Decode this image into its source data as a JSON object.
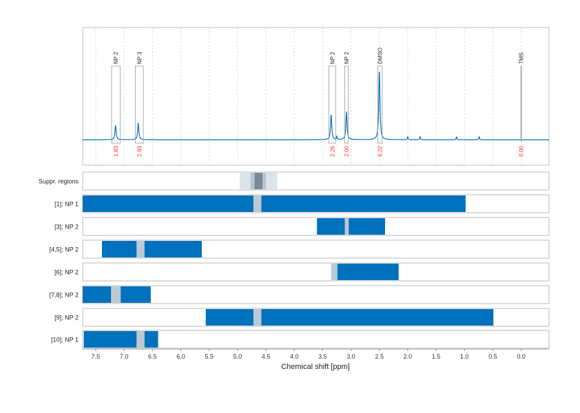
{
  "chart_data": {
    "type": "nmr-spectrum-with-range-tracks",
    "xlabel": "Chemical shift [ppm]",
    "xlim": [
      7.73,
      -0.49
    ],
    "x_reversed": true,
    "grid": "vertical dashed every 0.5 ppm",
    "x_ticks": [
      "7.5",
      "7.0",
      "6.5",
      "6.0",
      "5.5",
      "5.0",
      "4.5",
      "4.0",
      "3.5",
      "3.0",
      "2.5",
      "2.0",
      "1.5",
      "1.0",
      "0.5",
      "0.0"
    ],
    "spectrum": {
      "color": "#0071BC",
      "peaks": [
        {
          "label": "NP 2",
          "ppm": 7.15,
          "range": [
            7.22,
            7.07
          ],
          "rel_height": 0.2,
          "integral": "1.83"
        },
        {
          "label": "NP 3",
          "ppm": 6.75,
          "range": [
            6.8,
            6.66
          ],
          "rel_height": 0.23,
          "integral": "2.93"
        },
        {
          "label": "NP 2",
          "ppm": 3.35,
          "range": [
            3.39,
            3.27
          ],
          "rel_height": 0.35,
          "integral": "2.26"
        },
        {
          "label": "NP 2",
          "ppm": 3.08,
          "range": [
            3.11,
            3.05
          ],
          "rel_height": 0.38,
          "integral": "2.00"
        },
        {
          "label": "DMSO",
          "ppm": 2.5,
          "range": [
            2.53,
            2.45
          ],
          "rel_height": 0.97,
          "integral": "6.22"
        },
        {
          "label": "TMS",
          "ppm": 0.0,
          "range": [
            0.01,
            -0.01
          ],
          "rel_height": 1.0,
          "integral": "0.00"
        }
      ],
      "small_peaks": [
        1.78,
        1.14,
        0.74,
        3.25,
        2.0
      ]
    },
    "tracks": [
      {
        "label": "Suppr. regions",
        "kind": "suppression",
        "ranges": [
          [
            4.96,
            4.3
          ],
          [
            4.77,
            4.5
          ],
          [
            4.7,
            4.56
          ]
        ]
      },
      {
        "label": "[1]; NP 1",
        "ranges": [
          [
            7.73,
            4.72
          ],
          [
            4.58,
            0.98
          ]
        ],
        "gaps": [
          [
            4.72,
            4.58
          ]
        ]
      },
      {
        "label": "[3]; NP 2",
        "ranges": [
          [
            3.6,
            3.11
          ],
          [
            3.04,
            2.4
          ]
        ],
        "gaps": [
          [
            3.11,
            3.04
          ]
        ]
      },
      {
        "label": "[4,5]; NP 2",
        "ranges": [
          [
            7.39,
            6.78
          ],
          [
            6.64,
            5.63
          ]
        ],
        "gaps": [
          [
            6.78,
            6.64
          ]
        ]
      },
      {
        "label": "[6]; NP 2",
        "ranges": [
          [
            3.24,
            2.16
          ]
        ],
        "gaps": [
          [
            3.35,
            3.24
          ]
        ]
      },
      {
        "label": "[7,8]; NP 2",
        "ranges": [
          [
            7.73,
            7.23
          ],
          [
            7.06,
            6.53
          ]
        ],
        "gaps": [
          [
            7.23,
            7.06
          ]
        ]
      },
      {
        "label": "[9]; NP 2",
        "ranges": [
          [
            5.56,
            4.72
          ],
          [
            4.58,
            0.49
          ]
        ],
        "gaps": [
          [
            4.72,
            4.58
          ]
        ]
      },
      {
        "label": "[10]; NP 1",
        "ranges": [
          [
            7.71,
            6.78
          ],
          [
            6.64,
            6.4
          ]
        ],
        "gaps": [
          [
            6.78,
            6.64
          ]
        ]
      }
    ],
    "colors": {
      "bar": "#0071BC",
      "gap": "#BCC9D0",
      "integral": "#FF2A2A",
      "supp_light": "#DCE3EA",
      "supp_mid": "#B5C4CD",
      "supp_dark": "#788A96"
    }
  }
}
